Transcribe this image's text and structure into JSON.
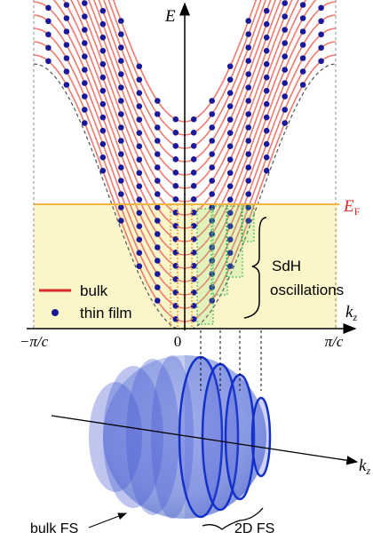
{
  "top_panel": {
    "axis_label_energy": "E",
    "fermi_label": "E",
    "fermi_label_sub": "F",
    "kz_label": "k",
    "kz_label_sub": "z",
    "ticks": [
      "−π/c",
      "0",
      "π/c"
    ],
    "legend": [
      {
        "label": "bulk"
      },
      {
        "label": "thin film"
      }
    ],
    "annotation": [
      "SdH",
      "oscillations"
    ]
  },
  "bottom_panel": {
    "kz_label": "k",
    "kz_label_sub": "z",
    "labels": [
      "bulk FS",
      "2D FS"
    ]
  }
}
